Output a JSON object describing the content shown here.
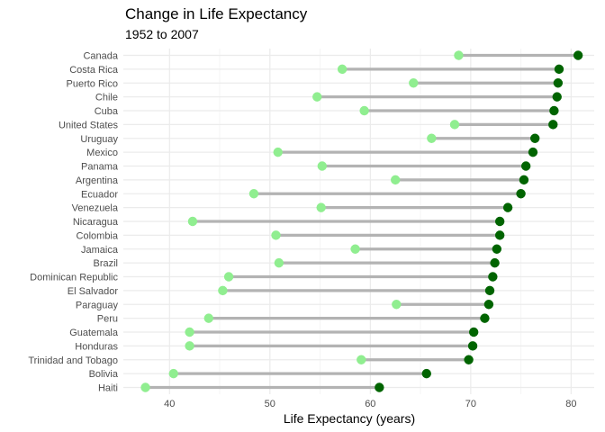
{
  "chart_data": {
    "type": "dumbbell",
    "title": "Change in Life Expectancy",
    "subtitle": "1952 to 2007",
    "xlabel": "Life Expectancy (years)",
    "ylabel": "",
    "xlim": [
      35.4,
      82.3
    ],
    "xticks": [
      40,
      50,
      60,
      70,
      80
    ],
    "grid": true,
    "legend": "none",
    "colors": {
      "start": "#90ee90",
      "end": "#006400",
      "segment": "#b3b3b3",
      "grid_major": "#ebebeb",
      "grid_minor": "#f5f5f5"
    },
    "series": [
      {
        "name": "1952",
        "color": "#90ee90"
      },
      {
        "name": "2007",
        "color": "#006400"
      }
    ],
    "categories": [
      "Canada",
      "Costa Rica",
      "Puerto Rico",
      "Chile",
      "Cuba",
      "United States",
      "Uruguay",
      "Mexico",
      "Panama",
      "Argentina",
      "Ecuador",
      "Venezuela",
      "Nicaragua",
      "Colombia",
      "Jamaica",
      "Brazil",
      "Dominican Republic",
      "El Salvador",
      "Paraguay",
      "Peru",
      "Guatemala",
      "Honduras",
      "Trinidad and Tobago",
      "Bolivia",
      "Haiti"
    ],
    "values_1952": [
      68.8,
      57.2,
      64.3,
      54.7,
      59.4,
      68.4,
      66.1,
      50.8,
      55.2,
      62.5,
      48.4,
      55.1,
      42.3,
      50.6,
      58.5,
      50.9,
      45.9,
      45.3,
      62.6,
      43.9,
      42.0,
      42.0,
      59.1,
      40.4,
      37.6
    ],
    "values_2007": [
      80.7,
      78.8,
      78.7,
      78.6,
      78.3,
      78.2,
      76.4,
      76.2,
      75.5,
      75.3,
      75.0,
      73.7,
      72.9,
      72.9,
      72.6,
      72.4,
      72.2,
      71.9,
      71.8,
      71.4,
      70.3,
      70.2,
      69.8,
      65.6,
      60.9
    ]
  }
}
